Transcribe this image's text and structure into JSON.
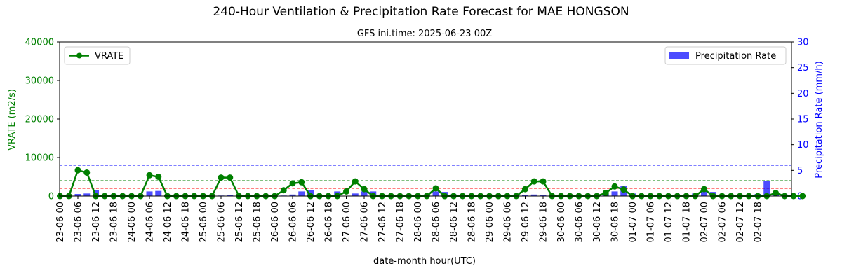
{
  "chart_data": {
    "type": "line",
    "title": "240-Hour Ventilation & Precipitation Rate Forecast for MAE HONGSON",
    "subtitle": "GFS ini.time: 2025-06-23 00Z",
    "xlabel": "date-month hour(UTC)",
    "ylabel_left": "VRATE (m2/s)",
    "ylabel_right": "Precipitation Rate (mm/h)",
    "ylim_left": [
      0,
      40000
    ],
    "ylim_right": [
      0,
      30
    ],
    "yticks_left": [
      "0",
      "10000",
      "20000",
      "30000",
      "40000"
    ],
    "yticks_right": [
      "0",
      "5",
      "10",
      "15",
      "20",
      "25",
      "30"
    ],
    "colors": {
      "vrate": "#008000",
      "precip": "#0000ff",
      "left_axis": "#008000",
      "right_axis": "#0000ff",
      "ref_blue": "#0000ff",
      "ref_green": "#008000",
      "ref_red": "#ff0000"
    },
    "x_tick_labels": [
      "23-06 00",
      "23-06 06",
      "23-06 12",
      "23-06 18",
      "24-06 00",
      "24-06 06",
      "24-06 12",
      "24-06 18",
      "25-06 00",
      "25-06 06",
      "25-06 12",
      "25-06 18",
      "26-06 00",
      "26-06 06",
      "26-06 12",
      "26-06 18",
      "27-06 00",
      "27-06 06",
      "27-06 12",
      "27-06 18",
      "28-06 00",
      "28-06 06",
      "28-06 12",
      "28-06 18",
      "29-06 00",
      "29-06 06",
      "29-06 12",
      "29-06 18",
      "30-06 00",
      "30-06 06",
      "30-06 12",
      "30-06 18",
      "01-07 00",
      "01-07 06",
      "01-07 12",
      "01-07 18",
      "02-07 00",
      "02-07 06",
      "02-07 12",
      "02-07 18"
    ],
    "series": [
      {
        "name": "VRATE",
        "axis": "left",
        "type": "line",
        "values": [
          0,
          0,
          6700,
          6100,
          0,
          0,
          0,
          0,
          0,
          0,
          5400,
          5000,
          0,
          0,
          0,
          0,
          0,
          0,
          4800,
          4800,
          0,
          0,
          0,
          0,
          0,
          1500,
          3300,
          3600,
          0,
          0,
          0,
          0,
          1200,
          3800,
          1800,
          0,
          0,
          0,
          0,
          0,
          0,
          0,
          2000,
          0,
          0,
          0,
          0,
          0,
          0,
          0,
          0,
          0,
          1800,
          3800,
          3800,
          0,
          0,
          0,
          0,
          0,
          0,
          800,
          2500,
          1700,
          0,
          0,
          0,
          0,
          0,
          0,
          0,
          0,
          1800,
          0,
          0,
          0,
          0,
          0,
          0,
          0,
          800,
          0,
          0,
          0
        ]
      },
      {
        "name": "Precipitation Rate",
        "axis": "right",
        "type": "bar",
        "values": [
          0.1,
          0.2,
          0.4,
          0.5,
          1.2,
          0.1,
          0.3,
          0.05,
          0.1,
          0.1,
          0.9,
          1.0,
          0.2,
          0.1,
          0.05,
          0.05,
          0.05,
          0.1,
          0.1,
          0.2,
          0.1,
          0.05,
          0.05,
          0.05,
          0.05,
          0.1,
          0.3,
          0.9,
          1.1,
          0.1,
          0.1,
          0.9,
          0.05,
          0.5,
          0.9,
          0.9,
          0.2,
          0.1,
          0.1,
          0.05,
          0.1,
          0.3,
          0.9,
          0.8,
          0.3,
          0.05,
          0.05,
          0.05,
          0.05,
          0.05,
          0.05,
          0.3,
          0.2,
          0.3,
          0.2,
          0.05,
          0.05,
          0.05,
          0.05,
          0.05,
          0.05,
          0.4,
          0.9,
          2.0,
          0.5,
          0.1,
          0.05,
          0.05,
          0.05,
          0.05,
          0.05,
          0.5,
          1.0,
          0.8,
          0.2,
          0.05,
          0.05,
          0.05,
          0.4,
          3.0,
          0.2,
          0.3,
          0.1,
          0.1
        ]
      }
    ],
    "reference_lines": [
      {
        "axis": "left",
        "value": 8000,
        "color": "#0000ff",
        "style": "dashed"
      },
      {
        "axis": "left",
        "value": 4000,
        "color": "#008000",
        "style": "dashed"
      },
      {
        "axis": "left",
        "value": 2000,
        "color": "#ff0000",
        "style": "dashed"
      }
    ],
    "legend_left": {
      "label": "VRATE",
      "placement": "top-left"
    },
    "legend_right": {
      "label": "Precipitation Rate",
      "placement": "top-right"
    },
    "grid": false
  }
}
